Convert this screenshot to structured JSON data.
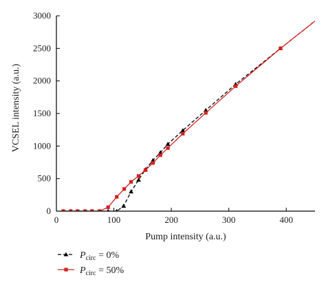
{
  "chart_data": {
    "type": "line",
    "xlabel": "Pump intensity (a.u.)",
    "ylabel": "VCSEL intensity (a.u.)",
    "xlim": [
      0,
      450
    ],
    "ylim": [
      0,
      3000
    ],
    "xticks": [
      0,
      100,
      200,
      300,
      400
    ],
    "yticks": [
      0,
      500,
      1000,
      1500,
      2000,
      2500,
      3000
    ],
    "xtick_labels": [
      "0",
      "100",
      "200",
      "300",
      "400"
    ],
    "ytick_labels": [
      "0",
      "500",
      "1000",
      "1500",
      "2000",
      "2500",
      "3000"
    ],
    "grid": false,
    "legend_position": "bottom-left, below plot",
    "series": [
      {
        "name_prefix": "P",
        "name_sub": "circ",
        "name_suffix": " = 0%",
        "color": "#000000",
        "line_style": "dashed",
        "marker": "triangle",
        "x": [
          12,
          25,
          37,
          50,
          62,
          75,
          90,
          105,
          117,
          130,
          143,
          155,
          168,
          181,
          194,
          220,
          260,
          312,
          390,
          450
        ],
        "y": [
          0,
          0,
          0,
          0,
          0,
          0,
          0,
          0,
          80,
          300,
          480,
          640,
          780,
          900,
          1030,
          1240,
          1550,
          1950,
          2500,
          2920
        ]
      },
      {
        "name_prefix": "P",
        "name_sub": "circ",
        "name_suffix": " = 50%",
        "color": "#d42020",
        "line_style": "solid",
        "marker": "square",
        "x": [
          12,
          25,
          37,
          50,
          62,
          75,
          90,
          105,
          118,
          130,
          143,
          155,
          168,
          181,
          194,
          220,
          260,
          312,
          390,
          450
        ],
        "y": [
          0,
          0,
          0,
          0,
          0,
          0,
          60,
          220,
          340,
          450,
          540,
          630,
          740,
          860,
          970,
          1190,
          1510,
          1920,
          2500,
          2920
        ]
      }
    ]
  }
}
